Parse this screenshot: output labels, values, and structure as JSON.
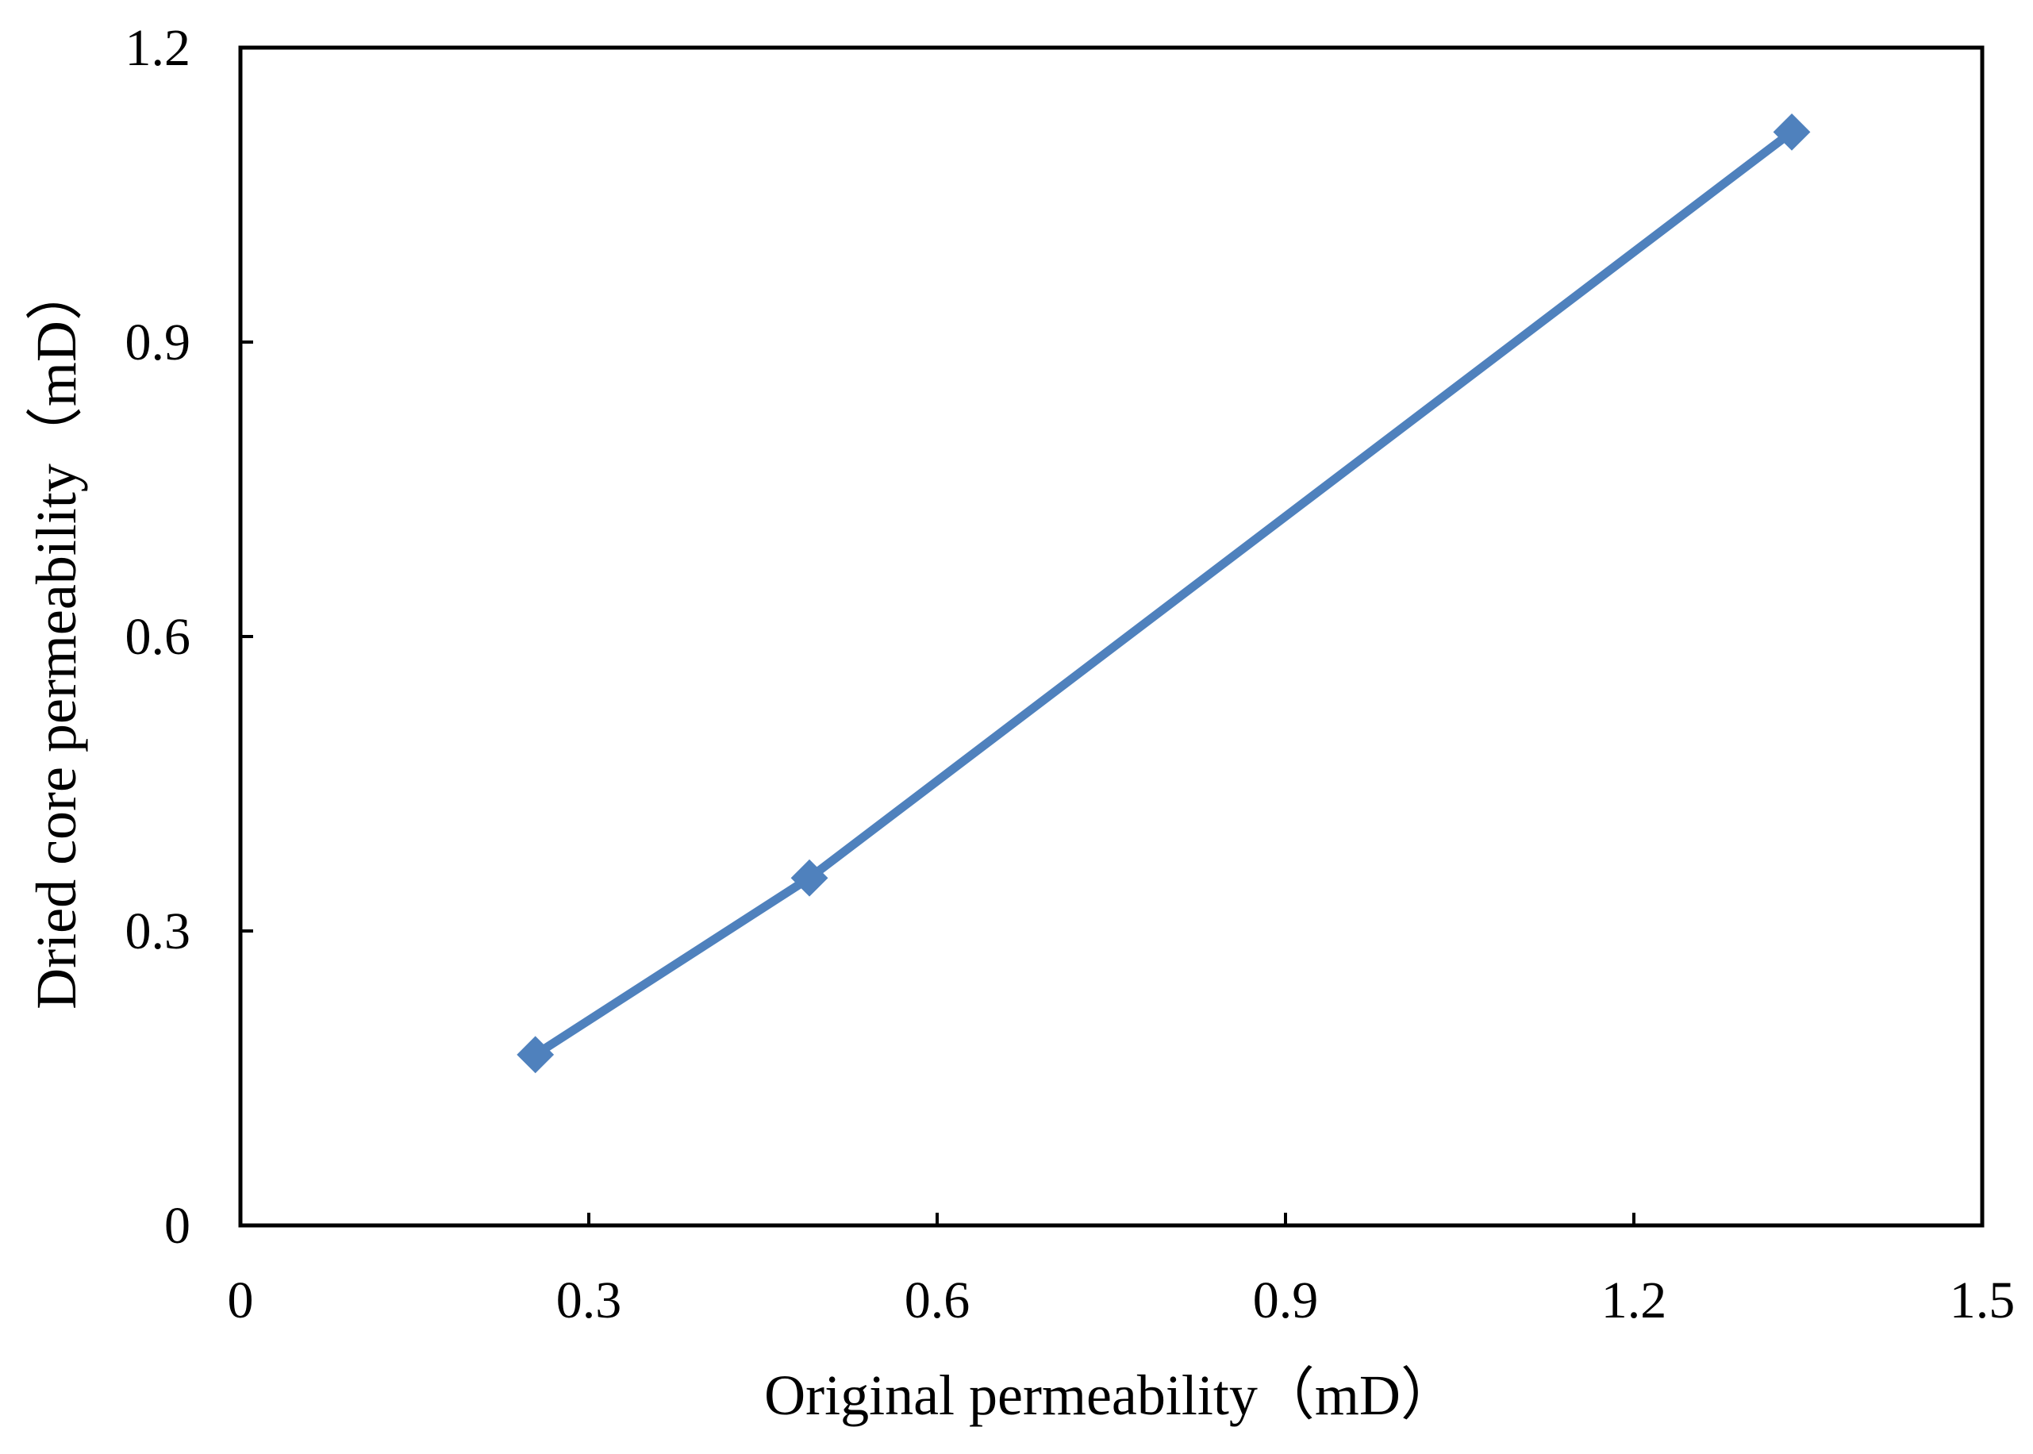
{
  "chart_data": {
    "type": "line",
    "title": "",
    "xlabel": "Original permeability（mD）",
    "ylabel": "Dried core permeability（mD）",
    "xlim": [
      0,
      1.5
    ],
    "ylim": [
      0,
      1.2
    ],
    "x_ticks": [
      "0",
      "0.3",
      "0.6",
      "0.9",
      "1.2",
      "1.5"
    ],
    "y_ticks": [
      "0",
      "0.3",
      "0.6",
      "0.9",
      "1.2"
    ],
    "grid": false,
    "legend": "none",
    "series": [
      {
        "color": "#4f81bd",
        "marker": "diamond",
        "points": [
          {
            "x": 0.254,
            "y": 0.174
          },
          {
            "x": 0.49,
            "y": 0.354
          },
          {
            "x": 1.336,
            "y": 1.114
          }
        ]
      }
    ]
  }
}
